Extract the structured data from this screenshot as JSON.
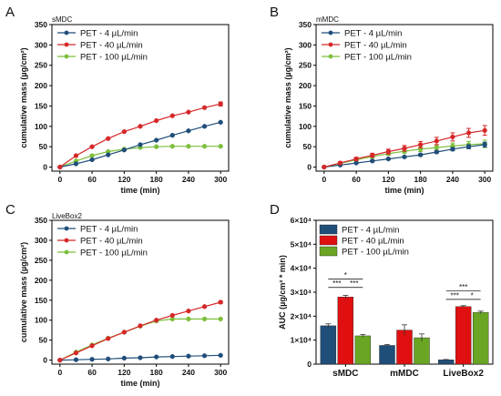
{
  "chart_data": [
    {
      "type": "line",
      "letter": "A",
      "title": "sMDC",
      "xlabel": "time (min)",
      "ylabel": "cumulative mass (µg/cm²)",
      "xlim": [
        -15,
        315
      ],
      "ylim": [
        -10,
        350
      ],
      "xticks": [
        "0",
        "60",
        "120",
        "180",
        "240",
        "300"
      ],
      "yticks": [
        "0",
        "50",
        "100",
        "150",
        "200",
        "250",
        "300",
        "350"
      ],
      "x": [
        0,
        30,
        60,
        90,
        120,
        150,
        180,
        210,
        240,
        270,
        300
      ],
      "legend_position": "top-left",
      "series": [
        {
          "name": "PET - 4 µL/min",
          "color": "#1f4e79",
          "values": [
            0,
            8,
            18,
            30,
            42,
            55,
            66,
            78,
            89,
            100,
            110
          ],
          "errors": [
            0,
            0,
            0,
            0,
            0,
            0,
            0,
            0,
            0,
            0,
            0
          ]
        },
        {
          "name": "PET - 40 µL/min",
          "color": "#d62728",
          "values": [
            0,
            28,
            50,
            70,
            87,
            100,
            114,
            126,
            135,
            146,
            155
          ],
          "errors": [
            0,
            0,
            0,
            0,
            0,
            0,
            0,
            0,
            0,
            0,
            5
          ]
        },
        {
          "name": "PET - 100 µL/min",
          "color": "#7cbf3a",
          "values": [
            0,
            15,
            28,
            38,
            44,
            48,
            50,
            51,
            51,
            51,
            51
          ],
          "errors": [
            0,
            0,
            0,
            0,
            0,
            0,
            0,
            0,
            0,
            0,
            0
          ]
        }
      ]
    },
    {
      "type": "line",
      "letter": "B",
      "title": "mMDC",
      "xlabel": "time (min)",
      "ylabel": "cumulative mass (µg/cm²)",
      "xlim": [
        -15,
        315
      ],
      "ylim": [
        -10,
        350
      ],
      "xticks": [
        "0",
        "60",
        "120",
        "180",
        "240",
        "300"
      ],
      "yticks": [
        "0",
        "50",
        "100",
        "150",
        "200",
        "250",
        "300",
        "350"
      ],
      "x": [
        0,
        30,
        60,
        90,
        120,
        150,
        180,
        210,
        240,
        270,
        300
      ],
      "legend_position": "top-left",
      "series": [
        {
          "name": "PET - 4 µL/min",
          "color": "#1f4e79",
          "values": [
            0,
            5,
            10,
            15,
            20,
            25,
            30,
            37,
            44,
            50,
            55
          ],
          "errors": [
            0,
            1,
            1,
            2,
            2,
            2,
            3,
            3,
            4,
            5,
            6
          ]
        },
        {
          "name": "PET - 40 µL/min",
          "color": "#d62728",
          "values": [
            0,
            10,
            20,
            29,
            38,
            46,
            55,
            64,
            74,
            84,
            90
          ],
          "errors": [
            0,
            3,
            4,
            5,
            6,
            7,
            8,
            9,
            10,
            11,
            12
          ]
        },
        {
          "name": "PET - 100 µL/min",
          "color": "#7cbf3a",
          "values": [
            0,
            9,
            18,
            26,
            33,
            39,
            44,
            48,
            52,
            55,
            57
          ],
          "errors": [
            0,
            2,
            3,
            4,
            4,
            5,
            6,
            6,
            7,
            8,
            9
          ]
        }
      ]
    },
    {
      "type": "line",
      "letter": "C",
      "title": "LiveBox2",
      "xlabel": "time (min)",
      "ylabel": "cumulative mass (µg/cm²)",
      "xlim": [
        -15,
        315
      ],
      "ylim": [
        -10,
        350
      ],
      "xticks": [
        "0",
        "60",
        "120",
        "180",
        "240",
        "300"
      ],
      "yticks": [
        "0",
        "50",
        "100",
        "150",
        "200",
        "250",
        "300",
        "350"
      ],
      "x": [
        0,
        30,
        60,
        90,
        120,
        150,
        180,
        210,
        240,
        270,
        300
      ],
      "legend_position": "top-left",
      "series": [
        {
          "name": "PET - 4 µL/min",
          "color": "#1f4e79",
          "values": [
            0,
            1,
            2,
            3,
            5,
            6,
            8,
            9,
            10,
            11,
            12
          ],
          "errors": [
            0,
            0,
            0,
            0,
            0,
            0,
            0,
            0,
            0,
            0,
            0
          ]
        },
        {
          "name": "PET - 40 µL/min",
          "color": "#d62728",
          "values": [
            0,
            18,
            36,
            54,
            70,
            86,
            100,
            112,
            123,
            134,
            145
          ],
          "errors": [
            0,
            0,
            0,
            0,
            0,
            0,
            0,
            0,
            0,
            0,
            3
          ]
        },
        {
          "name": "PET - 100 µL/min",
          "color": "#7cbf3a",
          "values": [
            0,
            20,
            38,
            55,
            70,
            85,
            98,
            103,
            103,
            103,
            103
          ],
          "errors": [
            0,
            0,
            0,
            0,
            0,
            0,
            0,
            0,
            0,
            0,
            0
          ]
        }
      ]
    },
    {
      "type": "bar",
      "letter": "D",
      "title": "",
      "xlabel": "",
      "ylabel": "AUC (µg/cm² * min)",
      "ylim": [
        0,
        60000
      ],
      "yticks": [
        "0",
        "1×10⁴",
        "2×10⁴",
        "3×10⁴",
        "4×10⁴",
        "5×10⁴",
        "6×10⁴"
      ],
      "categories": [
        "sMDC",
        "mMDC",
        "LiveBox2"
      ],
      "legend_position": "top-left",
      "series": [
        {
          "name": "PET  - 4 µL/min",
          "color": "#1f4e79",
          "values": [
            16000,
            7800,
            1800
          ],
          "errors": [
            800,
            400,
            150
          ]
        },
        {
          "name": "PET - 40 µL/min",
          "color": "#e01010",
          "values": [
            28000,
            14200,
            24000
          ],
          "errors": [
            700,
            2200,
            400
          ]
        },
        {
          "name": "PET - 100 µL/min",
          "color": "#6aa624",
          "values": [
            11800,
            11000,
            21600
          ],
          "errors": [
            600,
            1600,
            500
          ]
        }
      ],
      "significance": [
        {
          "category": 0,
          "from": 0,
          "to": 1,
          "label": "***",
          "y": 32000
        },
        {
          "category": 0,
          "from": 1,
          "to": 2,
          "label": "***",
          "y": 32000
        },
        {
          "category": 0,
          "from": 0,
          "to": 2,
          "label": "*",
          "y": 35500
        },
        {
          "category": 2,
          "from": 0,
          "to": 1,
          "label": "***",
          "y": 27000
        },
        {
          "category": 2,
          "from": 1,
          "to": 2,
          "label": "*",
          "y": 27000
        },
        {
          "category": 2,
          "from": 0,
          "to": 2,
          "label": "***",
          "y": 30500
        }
      ]
    }
  ]
}
